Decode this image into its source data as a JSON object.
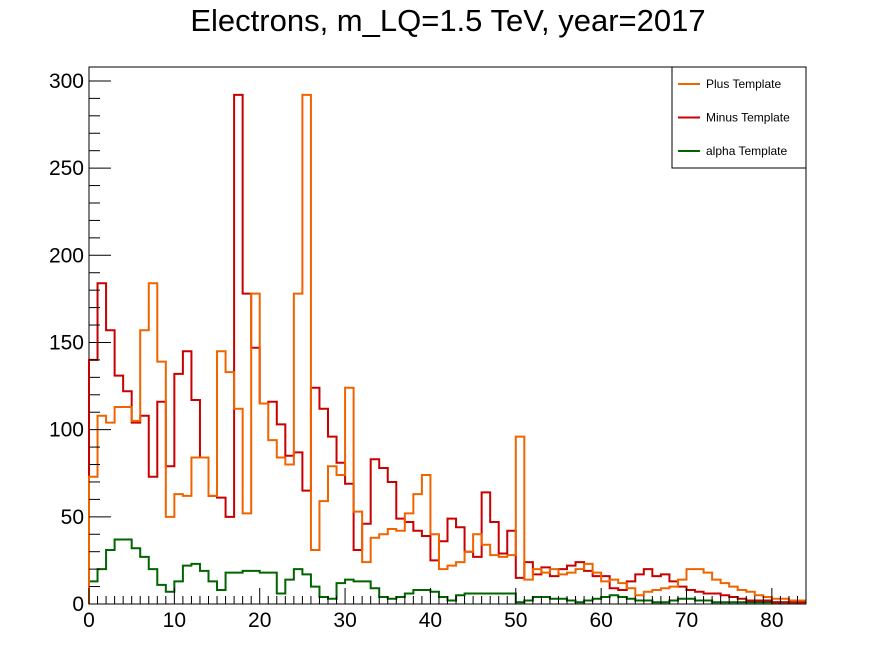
{
  "chart_data": {
    "type": "histogram",
    "title": "Electrons, m_LQ=1.5 TeV, year=2017",
    "xlabel": "",
    "ylabel": "",
    "xlim": [
      0,
      84
    ],
    "ylim": [
      0,
      308
    ],
    "bin_width": 1,
    "x_ticks": [
      0,
      10,
      20,
      30,
      40,
      50,
      60,
      70,
      80
    ],
    "y_ticks": [
      0,
      50,
      100,
      150,
      200,
      250,
      300
    ],
    "legend_position": "top-right",
    "grid": false,
    "series": [
      {
        "name": "Plus Template",
        "color": "#f06400",
        "values": [
          73,
          108,
          104,
          113,
          113,
          105,
          157,
          184,
          139,
          50,
          63,
          62,
          84,
          84,
          62,
          145,
          133,
          112,
          52,
          178,
          115,
          94,
          84,
          80,
          178,
          292,
          31,
          59,
          79,
          74,
          124,
          53,
          24,
          38,
          40,
          43,
          42,
          52,
          63,
          74,
          40,
          20,
          22,
          24,
          30,
          40,
          34,
          28,
          27,
          28,
          96,
          14,
          20,
          18,
          20,
          17,
          18,
          20,
          23,
          18,
          13,
          14,
          12,
          9,
          5,
          7,
          8,
          9,
          10,
          14,
          20,
          20,
          18,
          14,
          12,
          10,
          8,
          7,
          5,
          4,
          3,
          3,
          2,
          2
        ]
      },
      {
        "name": "Minus Template",
        "color": "#c80000",
        "values": [
          140,
          184,
          157,
          131,
          122,
          104,
          108,
          73,
          116,
          79,
          132,
          145,
          117,
          84,
          62,
          61,
          50,
          292,
          178,
          147,
          115,
          116,
          103,
          85,
          87,
          65,
          124,
          112,
          96,
          81,
          69,
          31,
          46,
          83,
          78,
          70,
          49,
          47,
          42,
          39,
          25,
          36,
          49,
          44,
          30,
          27,
          64,
          47,
          29,
          42,
          15,
          24,
          17,
          21,
          16,
          20,
          22,
          24,
          19,
          16,
          16,
          9,
          8,
          13,
          17,
          20,
          16,
          17,
          13,
          10,
          8,
          7,
          6,
          6,
          5,
          4,
          3,
          2,
          2,
          2,
          1,
          1,
          1,
          1
        ]
      },
      {
        "name": "alpha Template",
        "color": "#006400",
        "values": [
          13,
          20,
          31,
          37,
          37,
          32,
          27,
          20,
          11,
          7,
          13,
          22,
          23,
          19,
          13,
          8,
          18,
          18,
          19,
          19,
          18,
          18,
          6,
          14,
          20,
          17,
          10,
          4,
          3,
          12,
          14,
          13,
          13,
          9,
          4,
          3,
          4,
          6,
          8,
          8,
          7,
          4,
          2,
          5,
          6,
          6,
          6,
          6,
          6,
          6,
          1,
          2,
          4,
          4,
          3,
          3,
          2,
          1,
          2,
          3,
          4,
          5,
          4,
          3,
          2,
          2,
          1,
          1,
          2,
          3,
          3,
          2,
          2,
          1,
          1,
          1,
          1,
          1,
          1,
          1,
          1,
          1,
          1,
          1
        ]
      }
    ]
  }
}
